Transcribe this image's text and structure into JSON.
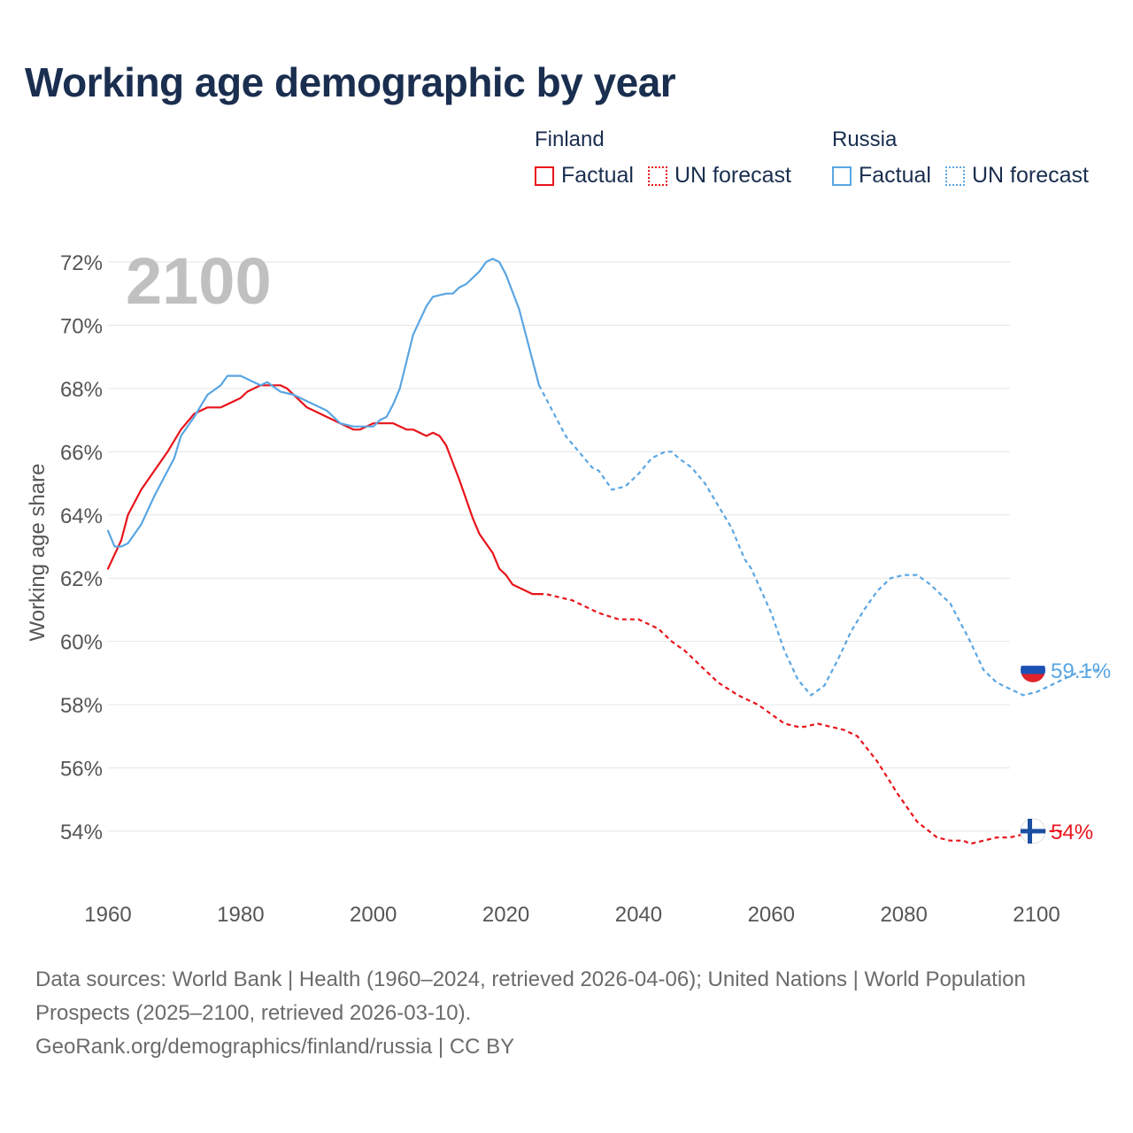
{
  "title": "Working age demographic by year",
  "legend": [
    {
      "group": "Finland",
      "factual_label": "Factual",
      "forecast_label": "UN forecast",
      "color": "#e8141b"
    },
    {
      "group": "Russia",
      "factual_label": "Factual",
      "forecast_label": "UN forecast",
      "color": "#5aa6e3"
    }
  ],
  "footer": {
    "sources": "Data sources: World Bank | Health (1960–2024, retrieved 2026-04-06); United Nations | World Population Prospects (2025–2100, retrieved 2026-03-10).",
    "link": "GeoRank.org/demographics/finland/russia | CC BY"
  },
  "chart_data": {
    "type": "line",
    "title": "Working age demographic by year",
    "year_label": "2100",
    "xlabel": "",
    "ylabel": "Working age share",
    "xlim": [
      1960,
      2100
    ],
    "ylim": [
      52,
      73
    ],
    "x_ticks": [
      1960,
      1980,
      2000,
      2020,
      2040,
      2060,
      2080,
      2100
    ],
    "y_ticks": [
      54,
      56,
      58,
      60,
      62,
      64,
      66,
      68,
      70,
      72
    ],
    "y_tick_suffix": "%",
    "forecast_start": 2025,
    "grid": true,
    "series": [
      {
        "name": "Finland",
        "color": "#e8141b",
        "end_label": "54%",
        "flag": "finland-flag",
        "points": [
          [
            1960,
            62.3
          ],
          [
            1962,
            63.2
          ],
          [
            1963,
            64.0
          ],
          [
            1965,
            64.8
          ],
          [
            1967,
            65.4
          ],
          [
            1969,
            66.0
          ],
          [
            1971,
            66.7
          ],
          [
            1973,
            67.2
          ],
          [
            1975,
            67.4
          ],
          [
            1977,
            67.4
          ],
          [
            1980,
            67.7
          ],
          [
            1981,
            67.9
          ],
          [
            1983,
            68.1
          ],
          [
            1986,
            68.1
          ],
          [
            1987,
            68.0
          ],
          [
            1990,
            67.4
          ],
          [
            1994,
            67.0
          ],
          [
            1996,
            66.8
          ],
          [
            1997,
            66.7
          ],
          [
            1998,
            66.7
          ],
          [
            2000,
            66.9
          ],
          [
            2002,
            66.9
          ],
          [
            2003,
            66.9
          ],
          [
            2005,
            66.7
          ],
          [
            2006,
            66.7
          ],
          [
            2008,
            66.5
          ],
          [
            2009,
            66.6
          ],
          [
            2010,
            66.5
          ],
          [
            2011,
            66.2
          ],
          [
            2013,
            65.1
          ],
          [
            2015,
            63.9
          ],
          [
            2016,
            63.4
          ],
          [
            2018,
            62.8
          ],
          [
            2019,
            62.3
          ],
          [
            2020,
            62.1
          ],
          [
            2021,
            61.8
          ],
          [
            2023,
            61.6
          ],
          [
            2024,
            61.5
          ],
          [
            2025,
            61.5
          ],
          [
            2026,
            61.5
          ],
          [
            2028,
            61.4
          ],
          [
            2030,
            61.3
          ],
          [
            2032,
            61.1
          ],
          [
            2034,
            60.9
          ],
          [
            2037,
            60.7
          ],
          [
            2040,
            60.7
          ],
          [
            2043,
            60.4
          ],
          [
            2045,
            60.0
          ],
          [
            2047,
            59.7
          ],
          [
            2049,
            59.3
          ],
          [
            2052,
            58.7
          ],
          [
            2055,
            58.3
          ],
          [
            2058,
            58.0
          ],
          [
            2060,
            57.7
          ],
          [
            2062,
            57.4
          ],
          [
            2064,
            57.3
          ],
          [
            2065,
            57.3
          ],
          [
            2067,
            57.4
          ],
          [
            2069,
            57.3
          ],
          [
            2071,
            57.2
          ],
          [
            2073,
            57.0
          ],
          [
            2076,
            56.2
          ],
          [
            2079,
            55.2
          ],
          [
            2082,
            54.3
          ],
          [
            2085,
            53.8
          ],
          [
            2087,
            53.7
          ],
          [
            2089,
            53.7
          ],
          [
            2090,
            53.6
          ],
          [
            2092,
            53.7
          ],
          [
            2094,
            53.8
          ],
          [
            2096,
            53.8
          ],
          [
            2098,
            53.9
          ],
          [
            2100,
            54.0
          ],
          [
            2104,
            54.0
          ]
        ]
      },
      {
        "name": "Russia",
        "color": "#5aa6e3",
        "end_label": "59.1%",
        "flag": "russia-flag",
        "points": [
          [
            1960,
            63.5
          ],
          [
            1961,
            63.0
          ],
          [
            1962,
            63.0
          ],
          [
            1963,
            63.1
          ],
          [
            1965,
            63.7
          ],
          [
            1967,
            64.6
          ],
          [
            1969,
            65.4
          ],
          [
            1970,
            65.8
          ],
          [
            1971,
            66.5
          ],
          [
            1973,
            67.1
          ],
          [
            1975,
            67.8
          ],
          [
            1977,
            68.1
          ],
          [
            1978,
            68.4
          ],
          [
            1980,
            68.4
          ],
          [
            1982,
            68.2
          ],
          [
            1983,
            68.1
          ],
          [
            1984,
            68.2
          ],
          [
            1986,
            67.9
          ],
          [
            1988,
            67.8
          ],
          [
            1990,
            67.6
          ],
          [
            1993,
            67.3
          ],
          [
            1995,
            66.9
          ],
          [
            1997,
            66.8
          ],
          [
            2000,
            66.8
          ],
          [
            2001,
            67.0
          ],
          [
            2002,
            67.1
          ],
          [
            2003,
            67.5
          ],
          [
            2004,
            68.0
          ],
          [
            2006,
            69.7
          ],
          [
            2008,
            70.6
          ],
          [
            2009,
            70.9
          ],
          [
            2011,
            71.0
          ],
          [
            2012,
            71.0
          ],
          [
            2013,
            71.2
          ],
          [
            2014,
            71.3
          ],
          [
            2016,
            71.7
          ],
          [
            2017,
            72.0
          ],
          [
            2018,
            72.1
          ],
          [
            2019,
            72.0
          ],
          [
            2020,
            71.6
          ],
          [
            2022,
            70.5
          ],
          [
            2024,
            68.9
          ],
          [
            2025,
            68.1
          ],
          [
            2027,
            67.3
          ],
          [
            2029,
            66.5
          ],
          [
            2031,
            66.0
          ],
          [
            2033,
            65.5
          ],
          [
            2034,
            65.4
          ],
          [
            2035,
            65.1
          ],
          [
            2036,
            64.8
          ],
          [
            2038,
            64.9
          ],
          [
            2040,
            65.3
          ],
          [
            2042,
            65.8
          ],
          [
            2044,
            66.0
          ],
          [
            2045,
            66.0
          ],
          [
            2046,
            65.8
          ],
          [
            2048,
            65.5
          ],
          [
            2050,
            65.0
          ],
          [
            2052,
            64.3
          ],
          [
            2054,
            63.6
          ],
          [
            2056,
            62.6
          ],
          [
            2057,
            62.3
          ],
          [
            2060,
            60.9
          ],
          [
            2062,
            59.7
          ],
          [
            2064,
            58.8
          ],
          [
            2066,
            58.3
          ],
          [
            2068,
            58.6
          ],
          [
            2070,
            59.4
          ],
          [
            2072,
            60.3
          ],
          [
            2074,
            61.0
          ],
          [
            2076,
            61.6
          ],
          [
            2078,
            62.0
          ],
          [
            2080,
            62.1
          ],
          [
            2082,
            62.1
          ],
          [
            2084,
            61.8
          ],
          [
            2087,
            61.2
          ],
          [
            2090,
            60.0
          ],
          [
            2092,
            59.1
          ],
          [
            2094,
            58.7
          ],
          [
            2096,
            58.5
          ],
          [
            2098,
            58.3
          ],
          [
            2100,
            58.4
          ],
          [
            2102,
            58.6
          ],
          [
            2104,
            58.8
          ],
          [
            2106,
            59.0
          ],
          [
            2108,
            59.1
          ],
          [
            2110,
            59.1
          ]
        ]
      }
    ]
  }
}
